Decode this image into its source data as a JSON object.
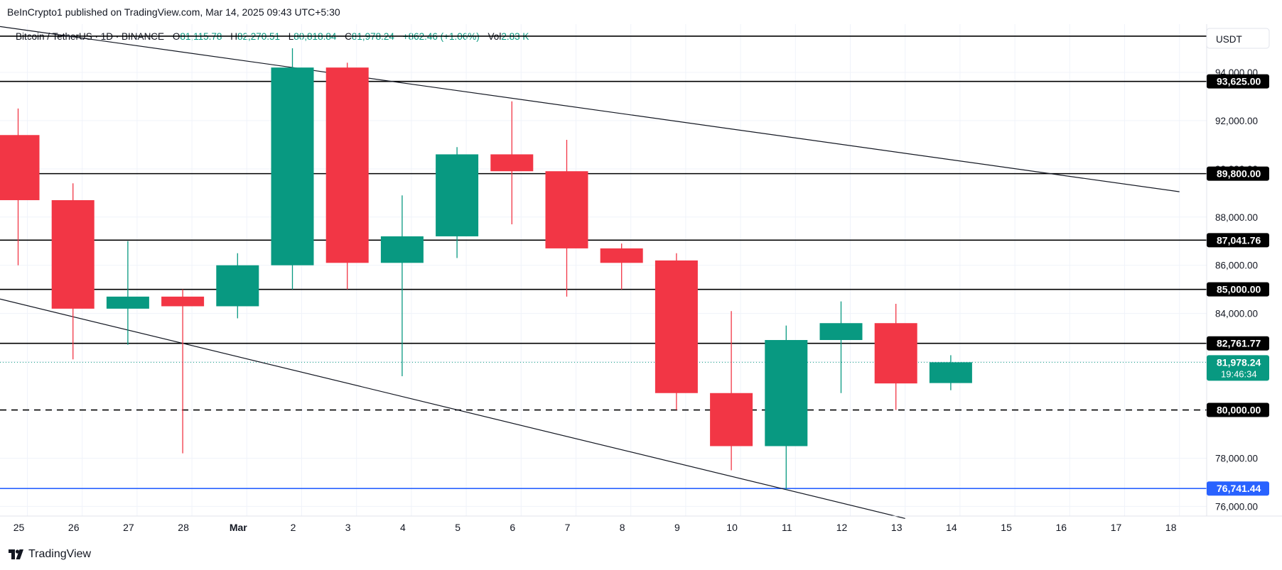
{
  "publisher_line": "BeInCrypto1 published on TradingView.com, Mar 14, 2025 09:43 UTC+5:30",
  "legend": {
    "symbol": "Bitcoin / TetherUS · 1D · BINANCE",
    "o_label": "O",
    "o_value": "81,115.78",
    "h_label": "H",
    "h_value": "82,270.51",
    "l_label": "L",
    "l_value": "80,818.84",
    "c_label": "C",
    "c_value": "81,978.24",
    "change": "+862.46 (+1.06%)",
    "vol_label": "Vol",
    "vol_value": "2.83 K"
  },
  "currency_label": "USDT",
  "footer_brand": "TradingView",
  "colors": {
    "up": "#089981",
    "down": "#f23645",
    "level_line": "#000000",
    "support_line": "#2962ff",
    "price_line": "#089981",
    "grid": "#f0f3fa"
  },
  "chart_data": {
    "type": "candlestick",
    "x_ticks": [
      "25",
      "26",
      "27",
      "28",
      "Mar",
      "2",
      "3",
      "4",
      "5",
      "6",
      "7",
      "8",
      "9",
      "10",
      "11",
      "12",
      "13",
      "14",
      "15",
      "16",
      "17",
      "18"
    ],
    "y_ticks": [
      "94,000.00",
      "92,000.00",
      "90,000.00",
      "88,000.00",
      "86,000.00",
      "84,000.00",
      "82,000.00",
      "80,000.00",
      "78,000.00",
      "76,000.00"
    ],
    "y_tick_values": [
      94000,
      92000,
      90000,
      88000,
      86000,
      84000,
      82000,
      80000,
      78000,
      76000
    ],
    "ylim": [
      75600,
      96000
    ],
    "candles": [
      {
        "x": "25",
        "open": 91400,
        "high": 92500,
        "low": 86000,
        "close": 88700
      },
      {
        "x": "26",
        "open": 88700,
        "high": 89400,
        "low": 82100,
        "close": 84200
      },
      {
        "x": "27",
        "open": 84200,
        "high": 87000,
        "low": 82700,
        "close": 84700
      },
      {
        "x": "28",
        "open": 84700,
        "high": 85000,
        "low": 78200,
        "close": 84300
      },
      {
        "x": "Mar",
        "open": 84300,
        "high": 86500,
        "low": 83800,
        "close": 86000
      },
      {
        "x": "2",
        "open": 86000,
        "high": 95000,
        "low": 85000,
        "close": 94200
      },
      {
        "x": "3",
        "open": 94200,
        "high": 94400,
        "low": 85000,
        "close": 86100
      },
      {
        "x": "4",
        "open": 86100,
        "high": 88900,
        "low": 81400,
        "close": 87200
      },
      {
        "x": "5",
        "open": 87200,
        "high": 90900,
        "low": 86300,
        "close": 90600
      },
      {
        "x": "6",
        "open": 90600,
        "high": 92800,
        "low": 87700,
        "close": 89900
      },
      {
        "x": "7",
        "open": 89900,
        "high": 91200,
        "low": 84700,
        "close": 86700
      },
      {
        "x": "8",
        "open": 86700,
        "high": 86900,
        "low": 85000,
        "close": 86100
      },
      {
        "x": "9",
        "open": 86200,
        "high": 86500,
        "low": 80000,
        "close": 80700
      },
      {
        "x": "10",
        "open": 80700,
        "high": 84100,
        "low": 77500,
        "close": 78500
      },
      {
        "x": "11",
        "open": 78500,
        "high": 83500,
        "low": 76700,
        "close": 82900
      },
      {
        "x": "12",
        "open": 82900,
        "high": 84500,
        "low": 80700,
        "close": 83600
      },
      {
        "x": "13",
        "open": 83600,
        "high": 84400,
        "low": 80000,
        "close": 81100
      },
      {
        "x": "14",
        "open": 81115.78,
        "high": 82270.51,
        "low": 80818.84,
        "close": 81978.24
      }
    ],
    "horizontal_levels": [
      {
        "value": 95500,
        "label": ""
      },
      {
        "value": 93625,
        "label": "93,625.00"
      },
      {
        "value": 89800,
        "label": "89,800.00"
      },
      {
        "value": 87041.76,
        "label": "87,041.76"
      },
      {
        "value": 85000,
        "label": "85,000.00"
      },
      {
        "value": 82761.77,
        "label": "82,761.77"
      }
    ],
    "dashed_level": {
      "value": 80000,
      "label": "80,000.00"
    },
    "support_level": {
      "value": 76741.44,
      "label": "76,741.44"
    },
    "current_price": {
      "value": 81978.24,
      "label": "81,978.24",
      "countdown": "19:46:34"
    },
    "trendlines": [
      {
        "from": {
          "x": "25",
          "y": 95900
        },
        "to": {
          "x": "18",
          "y": 89050
        }
      },
      {
        "from": {
          "x": "25",
          "y": 84600
        },
        "to": {
          "x": "13",
          "y": 75500
        }
      }
    ]
  }
}
